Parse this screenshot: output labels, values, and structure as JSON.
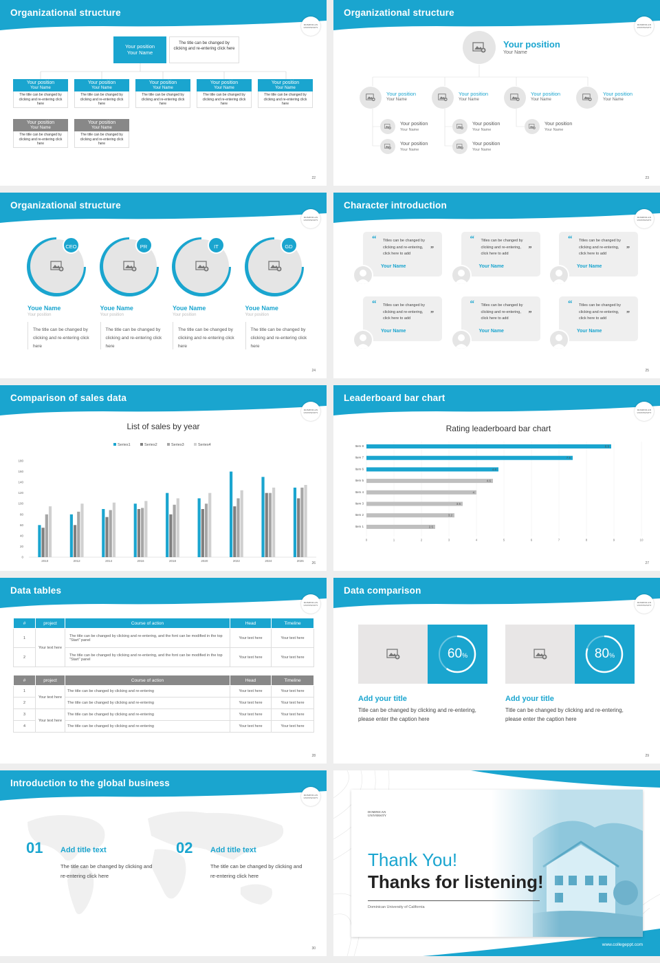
{
  "slides": [
    {
      "title": "Organizational structure",
      "page": "22",
      "top_box": {
        "label": "Your position\nYour Name",
        "desc": "The title can be changed by clicking and re-entering click here"
      },
      "row1": [
        {
          "head": "Your position",
          "name": "Your Name",
          "desc": "The title can be changed by clicking and re-entering click here"
        },
        {
          "head": "Your position",
          "name": "Your Name",
          "desc": "The title can be changed by clicking and re-entering click here"
        },
        {
          "head": "Your position",
          "name": "Your Name",
          "desc": "The title can be changed by clicking and re-entering click here"
        },
        {
          "head": "Your position",
          "name": "Your Name",
          "desc": "The title can be changed by clicking and re-entering click here"
        },
        {
          "head": "Your position",
          "name": "Your Name",
          "desc": "The title can be changed by clicking and re-entering click here"
        }
      ],
      "row2": [
        {
          "head": "Your position",
          "name": "Your Name",
          "desc": "The title can be changed by clicking and re-entering click here"
        },
        {
          "head": "Your position",
          "name": "Your Name",
          "desc": "The title can be changed by clicking and re-entering click here"
        }
      ]
    },
    {
      "title": "Organizational structure",
      "page": "23",
      "top": {
        "position": "Your position",
        "name": "Your Name"
      },
      "level2": [
        {
          "position": "Your position",
          "name": "Your Name"
        },
        {
          "position": "Your position",
          "name": "Your Name"
        },
        {
          "position": "Your position",
          "name": "Your Name"
        },
        {
          "position": "Your position",
          "name": "Your Name"
        }
      ],
      "level3": [
        {
          "position": "Your position",
          "name": "Your Name"
        },
        {
          "position": "Your position",
          "name": "Your Name"
        },
        {
          "position": "Your position",
          "name": "Your Name"
        },
        {
          "position": "Your position",
          "name": "Your Name"
        },
        {
          "position": "Your position",
          "name": "Your Name"
        }
      ]
    },
    {
      "title": "Organizational structure",
      "page": "24",
      "people": [
        {
          "badge": "CEO",
          "name": "Youe Name",
          "position": "Your position",
          "desc": "The title can be changed by clicking and re-entering click here"
        },
        {
          "badge": "PR",
          "name": "Youe Name",
          "position": "Your position",
          "desc": "The title can be changed by clicking and re-entering click here"
        },
        {
          "badge": "IT",
          "name": "Youe Name",
          "position": "Your position",
          "desc": "The title can be changed by clicking and re-entering click here"
        },
        {
          "badge": "GD",
          "name": "Youe Name",
          "position": "Your position",
          "desc": "The title can be changed by clicking and re-entering click here"
        }
      ]
    },
    {
      "title": "Character introduction",
      "page": "25",
      "cards": [
        {
          "text": "Titles can be changed by clicking and re-entering, click here to add",
          "name": "Your Name"
        },
        {
          "text": "Titles can be changed by clicking and re-entering, click here to add",
          "name": "Your Name"
        },
        {
          "text": "Titles can be changed by clicking and re-entering, click here to add",
          "name": "Your Name"
        },
        {
          "text": "Titles can be changed by clicking and re-entering, click here to add",
          "name": "Your Name"
        },
        {
          "text": "Titles can be changed by clicking and re-entering, click here to add",
          "name": "Your Name"
        },
        {
          "text": "Titles can be changed by clicking and re-entering, click here to add",
          "name": "Your Name"
        }
      ]
    },
    {
      "title": "Comparison of sales data",
      "page": "26"
    },
    {
      "title": "Leaderboard bar chart",
      "page": "27"
    },
    {
      "title": "Data tables",
      "page": "28",
      "table1": {
        "headers": [
          "#",
          "project",
          "Course of action",
          "Head",
          "Timeline"
        ],
        "group": "Your text here",
        "rows": [
          {
            "n": "1",
            "action": "The title can be changed by clicking and re-entering, and the font can be modified in the top \"Start\" panel",
            "head": "Your text here",
            "time": "Your text here"
          },
          {
            "n": "2",
            "action": "The title can be changed by clicking and re-entering, and the font can be modified in the top \"Start\" panel",
            "head": "Your text here",
            "time": "Your text here"
          }
        ]
      },
      "table2": {
        "headers": [
          "#",
          "project",
          "Course of action",
          "Head",
          "Timeline"
        ],
        "groups": [
          "Your text here",
          "Your text here"
        ],
        "rows": [
          {
            "n": "1",
            "action": "The title can be changed by clicking and re-entering",
            "head": "Your text here",
            "time": "Your text here"
          },
          {
            "n": "2",
            "action": "The title can be changed by clicking and re-entering",
            "head": "Your text here",
            "time": "Your text here"
          },
          {
            "n": "3",
            "action": "The title can be changed by clicking and re-entering",
            "head": "Your text here",
            "time": "Your text here"
          },
          {
            "n": "4",
            "action": "The title can be changed by clicking and re-entering",
            "head": "Your text here",
            "time": "Your text here"
          }
        ]
      }
    },
    {
      "title": "Data comparison",
      "page": "29",
      "items": [
        {
          "value": "60",
          "unit": "%",
          "fraction": 0.6,
          "title": "Add your title",
          "desc": "Title can be changed by clicking and re-entering, please enter the caption here"
        },
        {
          "value": "80",
          "unit": "%",
          "fraction": 0.8,
          "title": "Add your title",
          "desc": "Title can be changed by clicking and re-entering, please enter the caption here"
        }
      ]
    },
    {
      "title": "Introduction to the global business",
      "page": "30",
      "items": [
        {
          "num": "01",
          "title": "Add title text",
          "desc": "The title can be changed by clicking and re-entering click here"
        },
        {
          "num": "02",
          "title": "Add title text",
          "desc": "The title can be changed by clicking and re-entering click here"
        }
      ]
    },
    {
      "logo": "DOMINICAN UNIVERSITY",
      "thanks": "Thank You!",
      "listening": "Thanks for listening!",
      "org": "Dominican University of California",
      "url": "www.collegeppt.com"
    }
  ],
  "logo_text": "DOMINICAN UNIVERSITY",
  "chart_data": [
    {
      "type": "bar",
      "title": "List of sales by year",
      "categories": [
        "2010",
        "2012",
        "2014",
        "2016",
        "2018",
        "2020",
        "2022",
        "2024",
        "2026"
      ],
      "series": [
        {
          "name": "Series1",
          "values": [
            60,
            80,
            90,
            100,
            120,
            110,
            160,
            150,
            130
          ]
        },
        {
          "name": "Series2",
          "values": [
            55,
            60,
            75,
            90,
            80,
            90,
            95,
            120,
            110
          ]
        },
        {
          "name": "Series3",
          "values": [
            80,
            85,
            88,
            92,
            98,
            100,
            110,
            120,
            130
          ]
        },
        {
          "name": "Series4",
          "values": [
            95,
            100,
            102,
            105,
            110,
            120,
            125,
            130,
            135
          ]
        }
      ],
      "ylim": [
        0,
        180
      ],
      "yticks": [
        "0",
        "20",
        "40",
        "60",
        "80",
        "100",
        "120",
        "140",
        "160",
        "180"
      ],
      "legend": "top",
      "colors": [
        "#1aa5cf",
        "#7f7f7f",
        "#a6a6a6",
        "#d0d0d0"
      ]
    },
    {
      "type": "bar",
      "orientation": "horizontal",
      "title": "Rating leaderboard bar chart",
      "categories": [
        "Item 8",
        "Item 7",
        "Item 6",
        "Item 5",
        "Item 4",
        "Item 3",
        "Item 2",
        "Item 1"
      ],
      "values": [
        8.9,
        7.5,
        4.8,
        4.6,
        4,
        3.5,
        3.2,
        2.5
      ],
      "labels": [
        "8.9",
        "7.5",
        "4.8",
        "4.6",
        "4",
        "3.5",
        "3.2",
        "2.5"
      ],
      "xlim": [
        0,
        10
      ],
      "xticks": [
        "0",
        "1",
        "2",
        "3",
        "4",
        "5",
        "6",
        "7",
        "8",
        "9",
        "10"
      ],
      "colors": [
        "#1aa5cf",
        "#1aa5cf",
        "#1aa5cf",
        "#bfbfbf",
        "#bfbfbf",
        "#bfbfbf",
        "#bfbfbf",
        "#bfbfbf"
      ]
    }
  ],
  "colors": {
    "accent": "#1aa5cf",
    "grey": "#888888"
  }
}
